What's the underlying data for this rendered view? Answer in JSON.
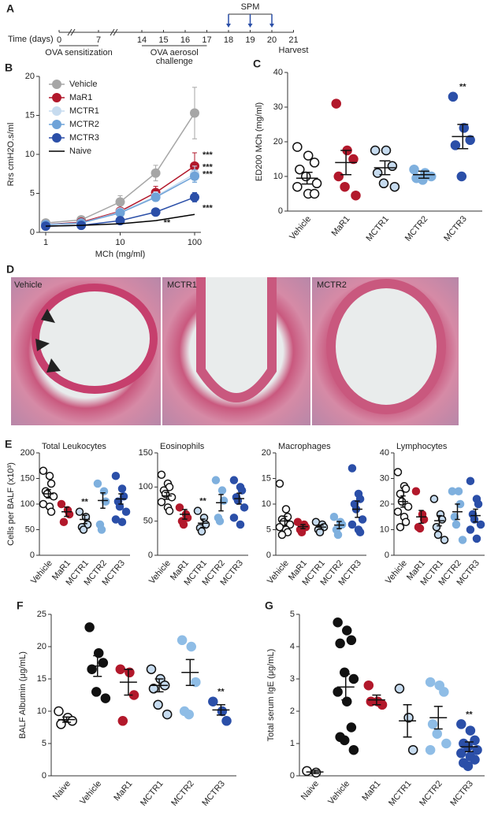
{
  "timeline": {
    "label": "A",
    "axis_label": "Time (days)",
    "days": [
      0,
      7,
      14,
      15,
      16,
      17,
      18,
      19,
      20,
      21
    ],
    "phases": [
      {
        "name": "OVA sensitization",
        "from": 0,
        "to": 7
      },
      {
        "name": "OVA aerosol challenge",
        "from": 14,
        "to": 17
      }
    ],
    "treatment": {
      "name": "SPM",
      "days": [
        18,
        19,
        20
      ]
    },
    "end_label": "Harvest"
  },
  "histology": {
    "label": "D",
    "panels": [
      "Vehicle",
      "MCTR1",
      "MCTR2"
    ]
  },
  "chart_data": [
    {
      "type": "line",
      "label": "B",
      "xlabel": "MCh (mg/ml)",
      "ylabel": "Rrs cmH2O.s/ml",
      "xlog": true,
      "x": [
        1,
        3,
        10,
        30,
        100
      ],
      "xlim": [
        1,
        100
      ],
      "xticks": [
        1,
        10,
        100
      ],
      "ylim": [
        0,
        20
      ],
      "yticks": [
        0,
        5,
        10,
        15,
        20
      ],
      "legend": "upper left",
      "series": [
        {
          "name": "Vehicle",
          "color": "#a6a6a6",
          "values": [
            1.2,
            1.6,
            3.9,
            7.6,
            15.3
          ],
          "errors": [
            0.2,
            0.3,
            0.8,
            1.0,
            3.3
          ]
        },
        {
          "name": "MaR1",
          "color": "#b2182b",
          "values": [
            1.0,
            1.3,
            2.7,
            5.1,
            8.5
          ],
          "errors": [
            0.2,
            0.2,
            0.4,
            0.8,
            1.7
          ],
          "significance": [
            null,
            null,
            null,
            null,
            "***"
          ]
        },
        {
          "name": "MCTR1",
          "color": "#c6dbef",
          "values": [
            1.0,
            1.2,
            2.6,
            4.6,
            7.5
          ],
          "errors": [
            0.1,
            0.2,
            0.4,
            0.6,
            1.0
          ],
          "significance": [
            null,
            null,
            null,
            null,
            "***"
          ]
        },
        {
          "name": "MCTR2",
          "color": "#6fa3d8",
          "values": [
            1.0,
            1.2,
            2.5,
            4.5,
            7.2
          ],
          "errors": [
            0.1,
            0.2,
            0.3,
            0.5,
            0.8
          ],
          "significance": [
            null,
            null,
            null,
            null,
            "***"
          ]
        },
        {
          "name": "MCTR3",
          "color": "#2b4fa8",
          "values": [
            0.8,
            0.9,
            1.5,
            2.6,
            4.5
          ],
          "errors": [
            0.1,
            0.1,
            0.2,
            0.3,
            0.6
          ],
          "significance": [
            null,
            null,
            null,
            "**",
            "***"
          ]
        },
        {
          "name": "Naive",
          "color": "#000000",
          "values": [
            0.8,
            0.9,
            1.1,
            1.5,
            2.3
          ],
          "markers": false
        }
      ]
    },
    {
      "type": "dot",
      "label": "C",
      "ylabel": "ED200 MCh (mg/ml)",
      "categories": [
        "Vehicle",
        "MaR1",
        "MCTR1",
        "MCTR2",
        "MCTR3"
      ],
      "colors": [
        "#ffffff",
        "#b2182b",
        "#c6dbef",
        "#7fb0de",
        "#2b4fa8"
      ],
      "ylim": [
        0,
        40
      ],
      "yticks": [
        0,
        10,
        20,
        30,
        40
      ],
      "points": [
        [
          18.5,
          16,
          14,
          12,
          10,
          8,
          7,
          5,
          5
        ],
        [
          31,
          17.5,
          15,
          10,
          7,
          4.5
        ],
        [
          17.5,
          17.5,
          13,
          11,
          8,
          7
        ],
        [
          12,
          11,
          10,
          9.5,
          9
        ],
        [
          33,
          24,
          20.5,
          19,
          10
        ]
      ],
      "means": [
        9.5,
        14,
        12.5,
        10.5,
        21.5
      ],
      "sems": [
        1.7,
        3.5,
        2,
        1,
        3.5
      ],
      "significance": [
        null,
        null,
        null,
        null,
        "**"
      ]
    },
    {
      "type": "dot",
      "label": "E",
      "title": "Total Leukocytes",
      "ylabel": "Cells per BALF (x10³)",
      "categories": [
        "Vehicle",
        "MaR1",
        "MCTR1",
        "MCTR2",
        "MCTR3"
      ],
      "colors": [
        "#ffffff",
        "#b2182b",
        "#c6dbef",
        "#7fb0de",
        "#2b4fa8"
      ],
      "ylim": [
        0,
        200
      ],
      "yticks": [
        0,
        50,
        100,
        150,
        200
      ],
      "points": [
        [
          165,
          155,
          140,
          125,
          120,
          115,
          100,
          95,
          85
        ],
        [
          100,
          88,
          80,
          65
        ],
        [
          85,
          75,
          60,
          55,
          50
        ],
        [
          140,
          125,
          105,
          60,
          50
        ],
        [
          155,
          130,
          115,
          105,
          95,
          85,
          70,
          65
        ]
      ],
      "means": [
        120,
        85,
        70,
        107,
        110
      ],
      "sems": [
        8,
        9,
        8,
        15,
        10
      ],
      "significance": [
        null,
        null,
        "**",
        null,
        null
      ]
    },
    {
      "type": "dot",
      "title": "Eosinophils",
      "categories": [
        "Vehicle",
        "MaR1",
        "MCTR1",
        "MCTR2",
        "MCTR3"
      ],
      "colors": [
        "#ffffff",
        "#b2182b",
        "#c6dbef",
        "#7fb0de",
        "#2b4fa8"
      ],
      "ylim": [
        0,
        150
      ],
      "yticks": [
        0,
        50,
        100,
        150
      ],
      "points": [
        [
          118,
          105,
          100,
          95,
          90,
          85,
          78,
          70,
          65
        ],
        [
          70,
          60,
          55,
          50,
          45
        ],
        [
          65,
          55,
          45,
          40,
          35
        ],
        [
          110,
          95,
          80,
          55,
          50
        ],
        [
          110,
          100,
          95,
          85,
          80,
          70,
          55,
          45
        ]
      ],
      "means": [
        87,
        60,
        47,
        77,
        83
      ],
      "sems": [
        5,
        7,
        6,
        12,
        8
      ],
      "significance": [
        null,
        null,
        "**",
        null,
        null
      ]
    },
    {
      "type": "dot",
      "title": "Macrophages",
      "categories": [
        "Vehicle",
        "MaR1",
        "MCTR1",
        "MCTR2",
        "MCTR3"
      ],
      "colors": [
        "#ffffff",
        "#b2182b",
        "#c6dbef",
        "#7fb0de",
        "#2b4fa8"
      ],
      "ylim": [
        0,
        20
      ],
      "yticks": [
        0,
        5,
        10,
        15,
        20
      ],
      "points": [
        [
          14,
          9,
          7.5,
          7,
          6.5,
          6,
          5.5,
          5,
          4.5,
          4
        ],
        [
          6.5,
          6,
          5.5,
          5,
          4.5
        ],
        [
          6.5,
          6,
          5.5,
          5,
          4.5
        ],
        [
          7.5,
          6.5,
          6,
          5,
          4
        ],
        [
          17,
          12,
          11,
          10,
          9,
          7,
          6,
          5,
          4.5
        ]
      ],
      "means": [
        6.7,
        5.6,
        5.5,
        5.9,
        9
      ],
      "sems": [
        0.9,
        0.4,
        0.4,
        0.7,
        1.6
      ]
    },
    {
      "type": "dot",
      "title": "Lymphocytes",
      "categories": [
        "Vehicle",
        "MaR1",
        "MCTR1",
        "MCTR2",
        "MCTR3"
      ],
      "colors": [
        "#ffffff",
        "#b2182b",
        "#c6dbef",
        "#7fb0de",
        "#2b4fa8"
      ],
      "ylim": [
        0,
        40
      ],
      "yticks": [
        0,
        10,
        20,
        30,
        40
      ],
      "points": [
        [
          32.5,
          27,
          26,
          24,
          21,
          19,
          17,
          15,
          13,
          11
        ],
        [
          25,
          16,
          14,
          11,
          10.5
        ],
        [
          22,
          16,
          14,
          11,
          8,
          6
        ],
        [
          25,
          25,
          20,
          15,
          12,
          6
        ],
        [
          29,
          22,
          20,
          16,
          14,
          12,
          10,
          6.5
        ]
      ],
      "means": [
        21,
        15,
        13.5,
        17,
        15.5
      ],
      "sems": [
        2.2,
        2.5,
        2,
        3,
        2.5
      ]
    },
    {
      "type": "dot",
      "label": "F",
      "ylabel": "BALF Albumin (μg/mL)",
      "categories": [
        "Naive",
        "Vehicle",
        "MaR1",
        "MCTR1",
        "MCTR2",
        "MCTR3"
      ],
      "colors": [
        "#ffffff",
        "#111111",
        "#b2182b",
        "#c6dbef",
        "#8fbde6",
        "#2b4fa8"
      ],
      "ylim": [
        0,
        25
      ],
      "yticks": [
        0,
        5,
        10,
        15,
        20,
        25
      ],
      "points": [
        [
          10,
          9,
          8.5,
          8
        ],
        [
          23,
          19,
          17.5,
          16.5,
          13,
          12
        ],
        [
          16.5,
          16,
          12.5,
          8.5
        ],
        [
          16.5,
          15,
          14,
          13.5,
          11,
          9.5
        ],
        [
          21,
          20,
          14.5,
          10,
          9.5
        ],
        [
          11.5,
          10,
          8.5
        ]
      ],
      "means": [
        8.7,
        17,
        14.5,
        14,
        16,
        10.2
      ],
      "sems": [
        0.4,
        1.6,
        2,
        1,
        2,
        0.8
      ],
      "significance": [
        null,
        null,
        null,
        null,
        null,
        "**"
      ]
    },
    {
      "type": "dot",
      "label": "G",
      "ylabel": "Total serum IgE (μg/mL)",
      "categories": [
        "Naive",
        "Vehicle",
        "MaR1",
        "MCTR1",
        "MCTR2",
        "MCTR3"
      ],
      "colors": [
        "#ffffff",
        "#111111",
        "#b2182b",
        "#c6dbef",
        "#8fbde6",
        "#2b4fa8"
      ],
      "ylim": [
        0,
        5
      ],
      "yticks": [
        0,
        1,
        2,
        3,
        4,
        5
      ],
      "points": [
        [
          0.15,
          0.1
        ],
        [
          4.75,
          4.5,
          4.2,
          4.1,
          3.2,
          3.0,
          2.6,
          2.3,
          1.5,
          1.2,
          1.1,
          0.8
        ],
        [
          2.8,
          2.3,
          2.2,
          2.3
        ],
        [
          2.7,
          1.8,
          0.8
        ],
        [
          2.9,
          2.8,
          2.6,
          1.6,
          1.3,
          1.0,
          0.8
        ],
        [
          1.6,
          1.4,
          1.1,
          1.0,
          0.9,
          0.8,
          0.7,
          0.6,
          0.5,
          0.4,
          0.3
        ]
      ],
      "means": [
        0.12,
        2.75,
        2.35,
        1.7,
        1.8,
        0.9
      ],
      "sems": [
        0.05,
        0.4,
        0.15,
        0.5,
        0.35,
        0.15
      ],
      "significance": [
        null,
        null,
        null,
        null,
        null,
        "**"
      ]
    }
  ]
}
